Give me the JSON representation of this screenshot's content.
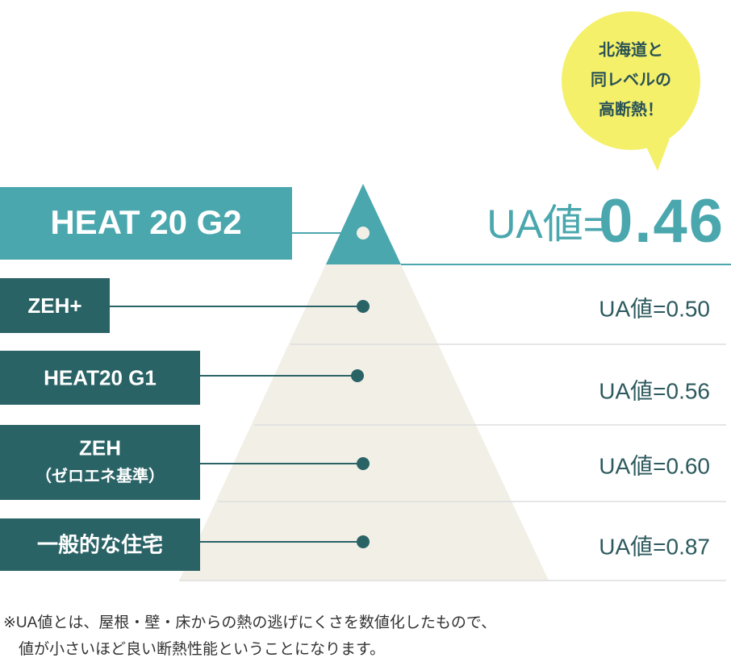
{
  "bubble": {
    "lines": [
      "北海道と",
      "同レベルの",
      "高断熱！"
    ]
  },
  "levels": [
    {
      "label": [
        "HEAT 20 G2"
      ],
      "ua_label": "UA値=",
      "ua_value": "0.46"
    },
    {
      "label": [
        "ZEH+"
      ],
      "ua": "UA値=0.50"
    },
    {
      "label": [
        "HEAT20 G1"
      ],
      "ua": "UA値=0.56"
    },
    {
      "label": [
        "ZEH",
        "（ゼロエネ基準）"
      ],
      "ua": "UA値=0.60"
    },
    {
      "label": [
        "一般的な住宅"
      ],
      "ua": "UA値=0.87"
    }
  ],
  "note": {
    "lines": [
      "※UA値とは、屋根・壁・床からの熱の逃げにくさを数値化したもので、",
      "　値が小さいほど良い断熱性能ということになります。"
    ]
  }
}
